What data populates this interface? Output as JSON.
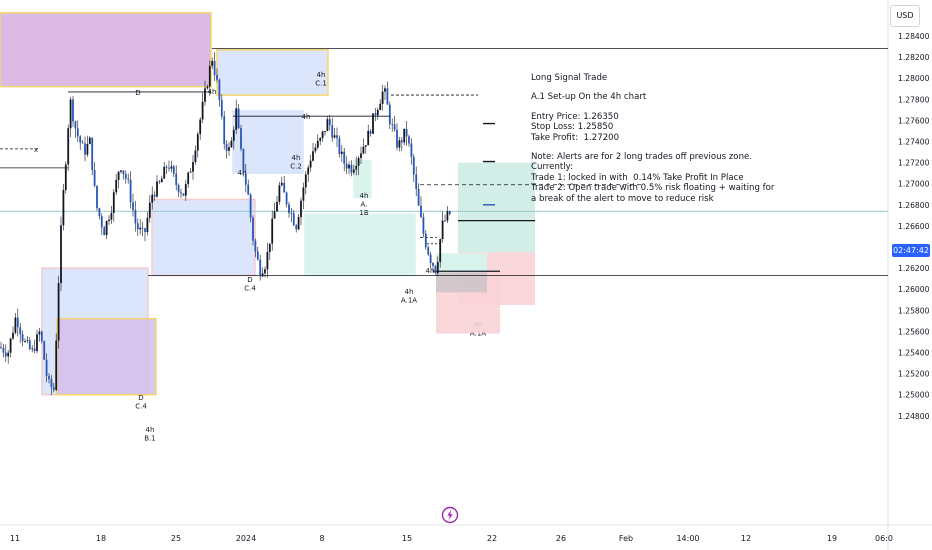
{
  "header": {
    "currency_label": "USD"
  },
  "live_price_tag": "02:47:42",
  "note": {
    "lines": [
      "Long Signal Trade",
      "",
      "A.1 Set-up On the 4h chart",
      "",
      "Entry Price: 1.26350",
      "Stop Loss: 1.25850",
      "Take Profit:  1.27200",
      "",
      "Note: Alerts are for 2 long trades off previous zone.",
      "Currently:",
      "Trade 1: locked in with  0.14% Take Profit In Place",
      "Trade 2: Open trade with 0.5% risk floating + waiting for",
      "a break of the alert to move to reduce risk"
    ]
  },
  "chart_data": {
    "type": "candlestick",
    "y_axis": {
      "side": "right",
      "range": [
        1.2475,
        1.286
      ],
      "ticks": [
        "1.28400",
        "1.28200",
        "1.28000",
        "1.27800",
        "1.27600",
        "1.27400",
        "1.27200",
        "1.27000",
        "1.26800",
        "1.26600",
        "1.26400",
        "1.26200",
        "1.26000",
        "1.25800",
        "1.25600",
        "1.25400",
        "1.25200",
        "1.25000",
        "1.24800"
      ]
    },
    "x_axis": {
      "ticks": [
        "11",
        "18",
        "25",
        "2024",
        "8",
        "15",
        "22",
        "26",
        "Feb",
        "14:00",
        "12",
        "19",
        "06:0"
      ]
    },
    "colors": {
      "up": "#131722",
      "down": "#2a55b8",
      "wick": "#131722"
    },
    "trade": {
      "entry": 1.2635,
      "stop_loss": 1.2585,
      "take_profit": 1.272,
      "level_marks": [
        1.2735,
        1.2718,
        1.2693
      ]
    },
    "horizontal_levels": [
      1.2828,
      1.2613,
      1.2664,
      1.2754,
      1.2787,
      1.2702
    ],
    "zones": [
      {
        "color": "#d8b4e2",
        "border": "#f4d35e",
        "top": 1.2862,
        "bottom": 1.2792
      },
      {
        "color": "#d8e3fb",
        "border": "#f4d35e",
        "top": 1.2827,
        "bottom": 1.2784,
        "labels": [
          "4h",
          "C.1"
        ]
      },
      {
        "color": "#d8e3fb",
        "border": "#d8e3fb",
        "top": 1.2769,
        "bottom": 1.271,
        "labels": [
          "4h",
          "C.2"
        ]
      },
      {
        "color": "#d8e3fb",
        "border": "#f3c7c7",
        "top": 1.2685,
        "bottom": 1.2613,
        "labels": [
          "D",
          "C.4"
        ]
      },
      {
        "color": "#d8f2ec",
        "border": "#d8f2ec",
        "top": 1.2671,
        "bottom": 1.2613,
        "labels": [
          "4h",
          "A.1A"
        ]
      },
      {
        "color": "#d8f2ec",
        "border": "#d8f2ec",
        "top": 1.2722,
        "bottom": 1.2687,
        "labels": [
          "4h",
          "A.",
          "1B"
        ]
      },
      {
        "color": "#d8e3fb",
        "border": "#f3c7c7",
        "top": 1.262,
        "bottom": 1.25
      },
      {
        "color": "#d6c1ec",
        "border": "#f4d35e",
        "top": 1.2572,
        "bottom": 1.25,
        "labels": [
          "D",
          "C.4",
          "4h",
          "B.1"
        ]
      },
      {
        "color": "#d8f2ec",
        "border": "#d8f2ec",
        "top": 1.2623,
        "bottom": 1.2613,
        "labels": [
          "4h",
          "A.1A"
        ]
      }
    ],
    "level_tags": [
      "D",
      "x",
      "4h",
      "4h",
      "4h",
      "4h"
    ]
  }
}
